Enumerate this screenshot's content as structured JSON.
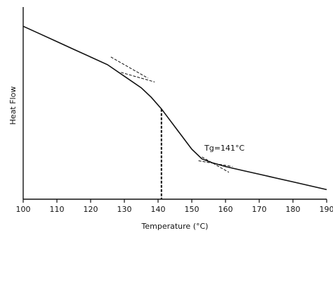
{
  "chart_data": {
    "type": "line",
    "title": "",
    "xlabel": "Temperature (°C)",
    "ylabel": "Heat Flow",
    "xlim": [
      100,
      190
    ],
    "x_ticks": [
      100,
      110,
      120,
      130,
      140,
      150,
      160,
      170,
      180,
      190
    ],
    "y_ticks_labeled": false,
    "grid": false,
    "series": [
      {
        "x": [
          100,
          105,
          110,
          115,
          120,
          125,
          130,
          135,
          138,
          141,
          144,
          147,
          150,
          153,
          156,
          160,
          165,
          170,
          175,
          180,
          185,
          190
        ],
        "y": [
          0.9,
          0.86,
          0.82,
          0.78,
          0.74,
          0.7,
          0.64,
          0.58,
          0.53,
          0.47,
          0.4,
          0.33,
          0.26,
          0.21,
          0.19,
          0.17,
          0.15,
          0.13,
          0.11,
          0.09,
          0.07,
          0.05
        ]
      }
    ],
    "tangent_lines": [
      {
        "x": [
          126,
          137
        ],
        "y": [
          0.74,
          0.63
        ]
      },
      {
        "x": [
          129,
          139
        ],
        "y": [
          0.66,
          0.61
        ]
      },
      {
        "x": [
          153,
          161
        ],
        "y": [
          0.22,
          0.14
        ]
      },
      {
        "x": [
          152,
          162
        ],
        "y": [
          0.2,
          0.17
        ]
      }
    ],
    "annotations": [
      {
        "text": "Tg=141°C",
        "x": 141,
        "marker": "vertical-dashed-line"
      }
    ]
  }
}
